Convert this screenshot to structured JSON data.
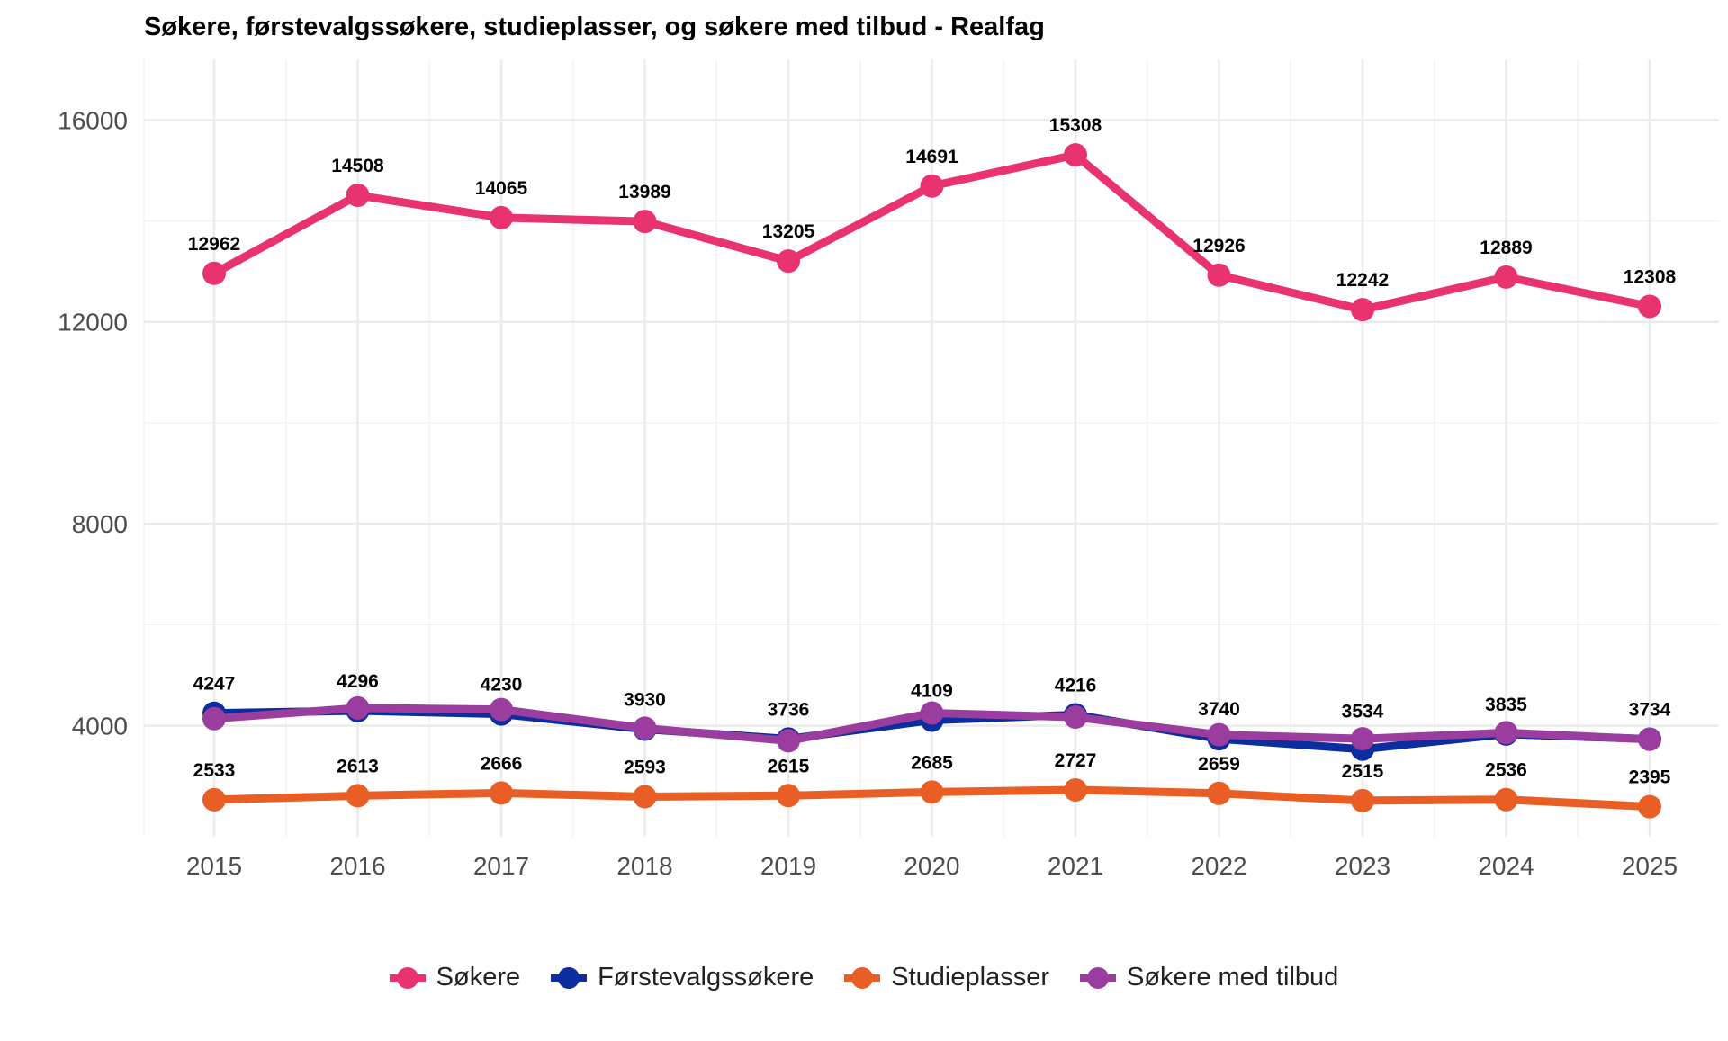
{
  "chart_data": {
    "type": "line",
    "title": "Søkere, førstevalgssøkere, studieplasser, og søkere med tilbud - Realfag",
    "xlabel": "",
    "ylabel": "",
    "x": [
      "2015",
      "2016",
      "2017",
      "2018",
      "2019",
      "2020",
      "2021",
      "2022",
      "2023",
      "2024",
      "2025"
    ],
    "ylim": [
      1800,
      17200
    ],
    "yticks": [
      4000,
      8000,
      12000,
      16000
    ],
    "grid": true,
    "legend_position": "bottom",
    "series": [
      {
        "name": "Søkere",
        "color": "#E8336E",
        "values": [
          12962,
          14508,
          14065,
          13989,
          13205,
          14691,
          15308,
          12926,
          12242,
          12889,
          12308
        ]
      },
      {
        "name": "Førstevalgssøkere",
        "color": "#0B2D9E",
        "values": [
          4247,
          4296,
          4230,
          3930,
          3736,
          4109,
          4216,
          3740,
          3534,
          3835,
          3734
        ]
      },
      {
        "name": "Studieplasser",
        "color": "#E85E25",
        "values": [
          2533,
          2613,
          2666,
          2593,
          2615,
          2685,
          2727,
          2659,
          2515,
          2536,
          2395
        ]
      },
      {
        "name": "Søkere med tilbud",
        "color": "#9A3D9E",
        "values": [
          4140,
          4350,
          4320,
          3950,
          3700,
          4250,
          4170,
          3820,
          3740,
          3860,
          3730
        ]
      }
    ],
    "labeled_series": [
      "Søkere",
      "Førstevalgssøkere",
      "Studieplasser"
    ]
  }
}
